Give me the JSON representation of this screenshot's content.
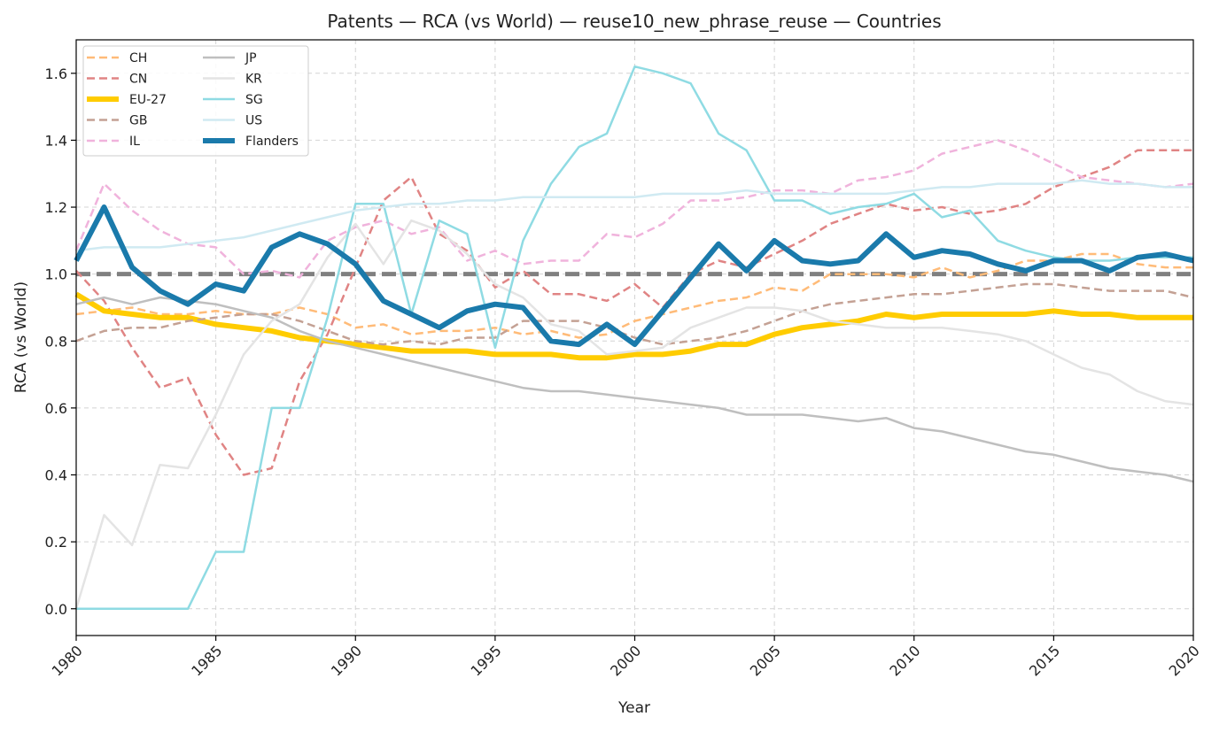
{
  "chart_data": {
    "type": "line",
    "title": "Patents — RCA (vs World) — reuse10_new_phrase_reuse — Countries",
    "xlabel": "Year",
    "ylabel": "RCA (vs World)",
    "xlim": [
      1980,
      2020
    ],
    "ylim": [
      -0.08,
      1.7
    ],
    "xticks": [
      1980,
      1985,
      1990,
      1995,
      2000,
      2005,
      2010,
      2015,
      2020
    ],
    "yticks": [
      0.0,
      0.2,
      0.4,
      0.6,
      0.8,
      1.0,
      1.2,
      1.4,
      1.6
    ],
    "ytick_labels": [
      "0.0",
      "0.2",
      "0.4",
      "0.6",
      "0.8",
      "1.0",
      "1.2",
      "1.4",
      "1.6"
    ],
    "grid": true,
    "legend_position": "top-left",
    "reference_line": {
      "y": 1.0,
      "color": "#808080"
    },
    "x": [
      1980,
      1981,
      1982,
      1983,
      1984,
      1985,
      1986,
      1987,
      1988,
      1989,
      1990,
      1991,
      1992,
      1993,
      1994,
      1995,
      1996,
      1997,
      1998,
      1999,
      2000,
      2001,
      2002,
      2003,
      2004,
      2005,
      2006,
      2007,
      2008,
      2009,
      2010,
      2011,
      2012,
      2013,
      2014,
      2015,
      2016,
      2017,
      2018,
      2019,
      2020
    ],
    "series": [
      {
        "name": "CH",
        "color": "#ffbb78",
        "style": "dashed",
        "width": 2.5,
        "opacity": 1,
        "values": [
          0.88,
          0.89,
          0.9,
          0.88,
          0.88,
          0.89,
          0.88,
          0.88,
          0.9,
          0.88,
          0.84,
          0.85,
          0.82,
          0.83,
          0.83,
          0.84,
          0.82,
          0.83,
          0.81,
          0.82,
          0.86,
          0.88,
          0.9,
          0.92,
          0.93,
          0.96,
          0.95,
          1.0,
          1.0,
          1.0,
          0.99,
          1.02,
          0.99,
          1.01,
          1.04,
          1.04,
          1.06,
          1.06,
          1.03,
          1.02,
          1.02
        ]
      },
      {
        "name": "CN",
        "color": "#e08484",
        "style": "dashed",
        "width": 2.5,
        "opacity": 1,
        "values": [
          1.01,
          0.92,
          0.78,
          0.66,
          0.69,
          0.52,
          0.4,
          0.42,
          0.68,
          0.82,
          1.02,
          1.22,
          1.29,
          1.12,
          1.07,
          0.96,
          1.01,
          0.94,
          0.94,
          0.92,
          0.97,
          0.9,
          1.0,
          1.04,
          1.02,
          1.06,
          1.1,
          1.15,
          1.18,
          1.21,
          1.19,
          1.2,
          1.18,
          1.19,
          1.21,
          1.26,
          1.29,
          1.32,
          1.37,
          1.37,
          1.37
        ]
      },
      {
        "name": "EU-27",
        "color": "#ffcc00",
        "style": "solid",
        "width": 6,
        "opacity": 1,
        "values": [
          0.94,
          0.89,
          0.88,
          0.87,
          0.87,
          0.85,
          0.84,
          0.83,
          0.81,
          0.8,
          0.79,
          0.78,
          0.77,
          0.77,
          0.77,
          0.76,
          0.76,
          0.76,
          0.75,
          0.75,
          0.76,
          0.76,
          0.77,
          0.79,
          0.79,
          0.82,
          0.84,
          0.85,
          0.86,
          0.88,
          0.87,
          0.88,
          0.88,
          0.88,
          0.88,
          0.89,
          0.88,
          0.88,
          0.87,
          0.87,
          0.87
        ]
      },
      {
        "name": "GB",
        "color": "#c4a194",
        "style": "dashed",
        "width": 2.5,
        "opacity": 1,
        "values": [
          0.8,
          0.83,
          0.84,
          0.84,
          0.86,
          0.87,
          0.88,
          0.88,
          0.86,
          0.83,
          0.8,
          0.79,
          0.8,
          0.79,
          0.81,
          0.81,
          0.86,
          0.86,
          0.86,
          0.84,
          0.81,
          0.79,
          0.8,
          0.81,
          0.83,
          0.86,
          0.89,
          0.91,
          0.92,
          0.93,
          0.94,
          0.94,
          0.95,
          0.96,
          0.97,
          0.97,
          0.96,
          0.95,
          0.95,
          0.95,
          0.93
        ]
      },
      {
        "name": "IL",
        "color": "#f0b3dc",
        "style": "dashed",
        "width": 2.5,
        "opacity": 1,
        "values": [
          1.07,
          1.27,
          1.19,
          1.13,
          1.09,
          1.08,
          1.0,
          1.01,
          0.99,
          1.1,
          1.14,
          1.16,
          1.12,
          1.14,
          1.04,
          1.07,
          1.03,
          1.04,
          1.04,
          1.12,
          1.11,
          1.15,
          1.22,
          1.22,
          1.23,
          1.25,
          1.25,
          1.24,
          1.28,
          1.29,
          1.31,
          1.36,
          1.38,
          1.4,
          1.37,
          1.33,
          1.29,
          1.28,
          1.27,
          1.26,
          1.27
        ]
      },
      {
        "name": "JP",
        "color": "#bfbfbf",
        "style": "solid",
        "width": 2.5,
        "opacity": 1,
        "values": [
          0.91,
          0.93,
          0.91,
          0.93,
          0.92,
          0.91,
          0.89,
          0.87,
          0.83,
          0.8,
          0.78,
          0.76,
          0.74,
          0.72,
          0.7,
          0.68,
          0.66,
          0.65,
          0.65,
          0.64,
          0.63,
          0.62,
          0.61,
          0.6,
          0.58,
          0.58,
          0.58,
          0.57,
          0.56,
          0.57,
          0.54,
          0.53,
          0.51,
          0.49,
          0.47,
          0.46,
          0.44,
          0.42,
          0.41,
          0.4,
          0.38
        ]
      },
      {
        "name": "KR",
        "color": "#e4e4e4",
        "style": "solid",
        "width": 2.5,
        "opacity": 1,
        "values": [
          0.0,
          0.28,
          0.19,
          0.43,
          0.42,
          0.58,
          0.76,
          0.86,
          0.91,
          1.05,
          1.15,
          1.03,
          1.16,
          1.13,
          1.06,
          0.97,
          0.93,
          0.85,
          0.83,
          0.76,
          0.77,
          0.78,
          0.84,
          0.87,
          0.9,
          0.9,
          0.89,
          0.86,
          0.85,
          0.84,
          0.84,
          0.84,
          0.83,
          0.82,
          0.8,
          0.76,
          0.72,
          0.7,
          0.65,
          0.62,
          0.61
        ]
      },
      {
        "name": "SG",
        "color": "#8fdbe3",
        "style": "solid",
        "width": 2.5,
        "opacity": 1,
        "values": [
          0.0,
          0.0,
          0.0,
          0.0,
          0.0,
          0.17,
          0.17,
          0.6,
          0.6,
          0.87,
          1.21,
          1.21,
          0.88,
          1.16,
          1.12,
          0.78,
          1.1,
          1.27,
          1.38,
          1.42,
          1.62,
          1.6,
          1.57,
          1.42,
          1.37,
          1.22,
          1.22,
          1.18,
          1.2,
          1.21,
          1.24,
          1.17,
          1.19,
          1.1,
          1.07,
          1.05,
          1.04,
          1.04,
          1.05,
          1.05,
          1.05
        ]
      },
      {
        "name": "US",
        "color": "#d0eaf2",
        "style": "solid",
        "width": 2.5,
        "opacity": 1,
        "values": [
          1.07,
          1.08,
          1.08,
          1.08,
          1.09,
          1.1,
          1.11,
          1.13,
          1.15,
          1.17,
          1.19,
          1.2,
          1.21,
          1.21,
          1.22,
          1.22,
          1.23,
          1.23,
          1.23,
          1.23,
          1.23,
          1.24,
          1.24,
          1.24,
          1.25,
          1.24,
          1.24,
          1.24,
          1.24,
          1.24,
          1.25,
          1.26,
          1.26,
          1.27,
          1.27,
          1.27,
          1.28,
          1.27,
          1.27,
          1.26,
          1.26
        ]
      },
      {
        "name": "Flanders",
        "color": "#1a7aab",
        "style": "solid",
        "width": 6,
        "opacity": 1,
        "values": [
          1.04,
          1.2,
          1.02,
          0.95,
          0.91,
          0.97,
          0.95,
          1.08,
          1.12,
          1.09,
          1.03,
          0.92,
          0.88,
          0.84,
          0.89,
          0.91,
          0.9,
          0.8,
          0.79,
          0.85,
          0.79,
          0.89,
          0.99,
          1.09,
          1.01,
          1.1,
          1.04,
          1.03,
          1.04,
          1.12,
          1.05,
          1.07,
          1.06,
          1.03,
          1.01,
          1.04,
          1.04,
          1.01,
          1.05,
          1.06,
          1.04
        ]
      }
    ]
  }
}
